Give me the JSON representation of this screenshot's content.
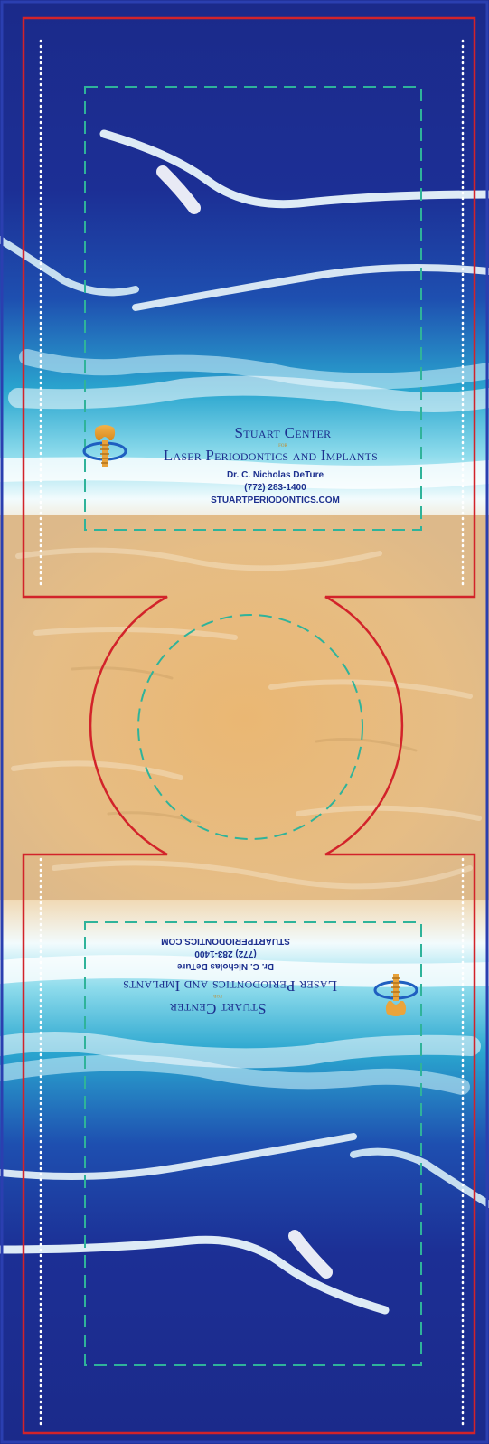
{
  "brand": {
    "name_line1": "Stuart Center",
    "name_for": "for",
    "name_line2": "Laser Periodontics and Implants",
    "doctor": "Dr. C. Nicholas DeTure",
    "phone": "(772) 283-1400",
    "website": "STUARTPERIODONTICS.COM"
  },
  "colors": {
    "deep_ocean": "#1b2a8a",
    "mid_ocean": "#1e56b8",
    "turquoise": "#2fb7d6",
    "foam": "#f2fbfd",
    "sand": "#e8b978",
    "cut_line": "#d2232a",
    "safe_line": "#2fb39a",
    "perforation": "#ffffff",
    "brand_text": "#1c2f8e",
    "brand_gold": "#c38b2a"
  },
  "icons": {
    "logo": "tooth-implant-logo"
  }
}
